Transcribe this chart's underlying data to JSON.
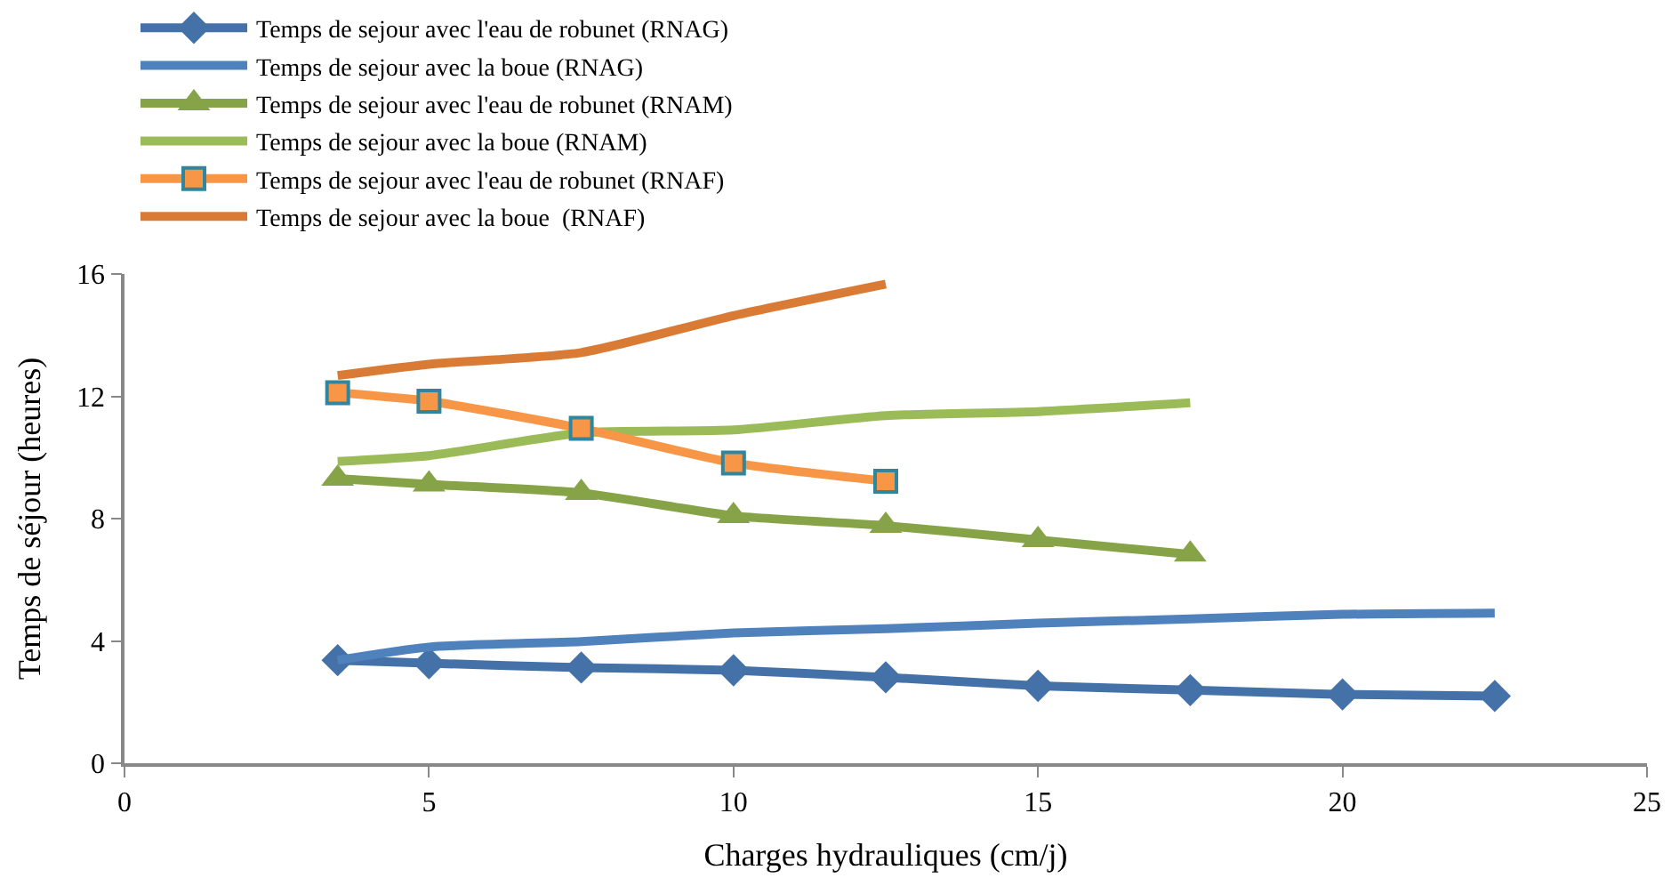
{
  "chart_data": {
    "type": "line",
    "xlabel": "Charges hydrauliques (cm/j)",
    "ylabel": "Temps de séjour (heures)",
    "xlim": [
      0,
      25
    ],
    "xticks": [
      0,
      5,
      10,
      15,
      20,
      25
    ],
    "ylim": [
      0,
      16
    ],
    "yticks": [
      0,
      4,
      8,
      12,
      16
    ],
    "legend": "top",
    "series": [
      {
        "name": "Temps de sejour avec l'eau de robunet (RNAG)",
        "color": "#4472a8",
        "marker": "diamond",
        "x": [
          3.5,
          5,
          7.5,
          10,
          12.5,
          15,
          17.5,
          20,
          22.5
        ],
        "values": [
          3.37,
          3.27,
          3.13,
          3.04,
          2.81,
          2.53,
          2.39,
          2.25,
          2.2
        ]
      },
      {
        "name": "Temps de sejour avec la boue (RNAG)",
        "color": "#4f81bd",
        "marker": "none",
        "x": [
          3.5,
          5,
          7.5,
          10,
          12.5,
          15,
          17.5,
          20,
          22.5
        ],
        "values": [
          3.37,
          3.8,
          3.98,
          4.26,
          4.4,
          4.58,
          4.72,
          4.87,
          4.91
        ]
      },
      {
        "name": "Temps de sejour avec l'eau de robunet (RNAM)",
        "color": "#86a447",
        "marker": "triangle",
        "x": [
          3.5,
          5,
          7.5,
          10,
          12.5,
          15,
          17.5
        ],
        "values": [
          9.31,
          9.12,
          8.84,
          8.09,
          7.77,
          7.3,
          6.83
        ]
      },
      {
        "name": "Temps de sejour avec la boue (RNAM)",
        "color": "#9bbb59",
        "marker": "none",
        "x": [
          3.5,
          5,
          7.5,
          10,
          12.5,
          15,
          17.5
        ],
        "values": [
          9.87,
          10.06,
          10.8,
          10.9,
          11.37,
          11.5,
          11.79
        ]
      },
      {
        "name": "Temps de sejour avec l'eau de robunet (RNAF)",
        "color": "#f79646",
        "marker": "square",
        "x": [
          3.5,
          5,
          7.5,
          10,
          12.5
        ],
        "values": [
          12.12,
          11.84,
          10.95,
          9.82,
          9.22
        ]
      },
      {
        "name": "Temps de sejour avec la boue  (RNAF)",
        "color": "#d97b35",
        "marker": "none",
        "x": [
          3.5,
          5,
          7.5,
          10,
          12.5
        ],
        "values": [
          12.68,
          13.05,
          13.43,
          14.64,
          15.67
        ]
      }
    ]
  }
}
